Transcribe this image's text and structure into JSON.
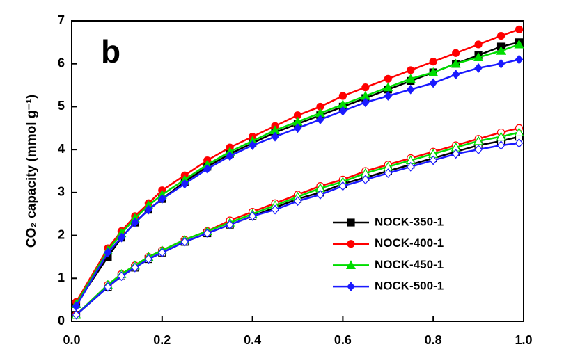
{
  "chart_data": {
    "type": "line",
    "panel_label": "b",
    "y_label": "CO₂ capacity (mmol g⁻¹)",
    "x": [
      0.01,
      0.08,
      0.11,
      0.14,
      0.17,
      0.2,
      0.25,
      0.3,
      0.35,
      0.4,
      0.45,
      0.5,
      0.55,
      0.6,
      0.65,
      0.7,
      0.75,
      0.8,
      0.85,
      0.9,
      0.95,
      0.99
    ],
    "xlim": [
      0,
      1
    ],
    "ylim": [
      0,
      7
    ],
    "xticks": [
      {
        "value": 0,
        "label": "0.0"
      },
      0.2,
      0.4,
      0.6,
      0.8,
      {
        "value": 1,
        "label": "1.0"
      }
    ],
    "yticks": [
      0,
      1,
      2,
      3,
      4,
      5,
      6,
      7
    ],
    "legend": "lower right",
    "series": [
      {
        "name": "NOCK-350-1",
        "color": "#000000",
        "marker": "square",
        "values": [
          0.4,
          1.5,
          1.95,
          2.3,
          2.6,
          2.85,
          3.25,
          3.6,
          3.9,
          4.15,
          4.4,
          4.6,
          4.8,
          5.0,
          5.2,
          5.4,
          5.6,
          5.8,
          6.0,
          6.2,
          6.4,
          6.5
        ],
        "open_values": [
          0.15,
          0.8,
          1.05,
          1.25,
          1.45,
          1.6,
          1.85,
          2.05,
          2.25,
          2.45,
          2.65,
          2.85,
          3.0,
          3.2,
          3.35,
          3.5,
          3.65,
          3.8,
          3.95,
          4.1,
          4.2,
          4.3
        ]
      },
      {
        "name": "NOCK-400-1",
        "color": "#ff0000",
        "marker": "circle",
        "values": [
          0.45,
          1.7,
          2.1,
          2.45,
          2.75,
          3.05,
          3.4,
          3.75,
          4.05,
          4.3,
          4.55,
          4.8,
          5.0,
          5.25,
          5.45,
          5.65,
          5.85,
          6.05,
          6.25,
          6.45,
          6.65,
          6.8
        ],
        "open_values": [
          0.15,
          0.85,
          1.1,
          1.3,
          1.5,
          1.65,
          1.9,
          2.1,
          2.35,
          2.55,
          2.75,
          2.95,
          3.15,
          3.3,
          3.5,
          3.65,
          3.8,
          3.95,
          4.1,
          4.25,
          4.4,
          4.5
        ]
      },
      {
        "name": "NOCK-450-1",
        "color": "#00dd00",
        "marker": "triangle",
        "values": [
          0.4,
          1.65,
          2.05,
          2.4,
          2.7,
          2.95,
          3.3,
          3.65,
          3.95,
          4.2,
          4.45,
          4.65,
          4.85,
          5.05,
          5.25,
          5.45,
          5.65,
          5.8,
          6.0,
          6.15,
          6.3,
          6.45
        ],
        "open_values": [
          0.15,
          0.85,
          1.1,
          1.3,
          1.5,
          1.65,
          1.9,
          2.1,
          2.3,
          2.5,
          2.7,
          2.9,
          3.1,
          3.25,
          3.45,
          3.6,
          3.75,
          3.9,
          4.05,
          4.2,
          4.3,
          4.4
        ]
      },
      {
        "name": "NOCK-500-1",
        "color": "#1a1aff",
        "marker": "diamond",
        "values": [
          0.35,
          1.6,
          1.95,
          2.3,
          2.6,
          2.85,
          3.2,
          3.55,
          3.85,
          4.1,
          4.3,
          4.5,
          4.7,
          4.9,
          5.1,
          5.25,
          5.4,
          5.55,
          5.75,
          5.9,
          6.0,
          6.1
        ],
        "open_values": [
          0.15,
          0.8,
          1.05,
          1.25,
          1.45,
          1.6,
          1.85,
          2.05,
          2.25,
          2.45,
          2.6,
          2.8,
          2.95,
          3.15,
          3.3,
          3.45,
          3.6,
          3.75,
          3.9,
          4.0,
          4.1,
          4.15
        ]
      }
    ]
  }
}
